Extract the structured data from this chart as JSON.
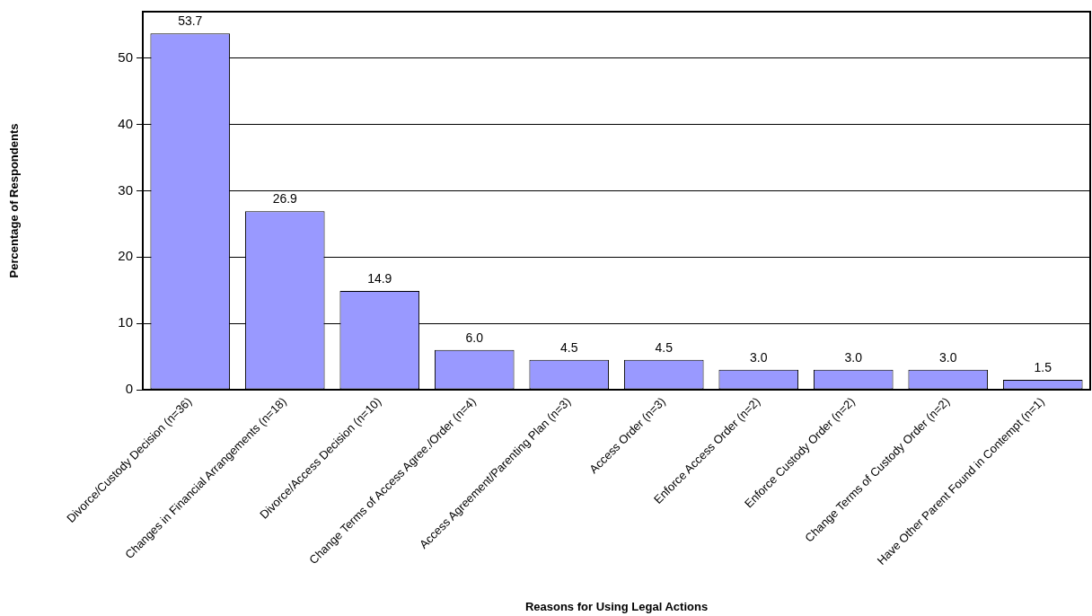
{
  "chart_data": {
    "type": "bar",
    "xlabel": "Reasons for Using Legal Actions",
    "ylabel": "Percentage of Respondents",
    "categories": [
      "Divorce/Custody Decision (n=36)",
      "Changes in Financial Arrangements (n=18)",
      "Divorce/Access Decision (n=10)",
      "Change Terms of Access Agree./Order (n=4)",
      "Access Agreement/Parenting Plan (n=3)",
      "Access Order (n=3)",
      "Enforce Access Order (n=2)",
      "Enforce Custody Order (n=2)",
      "Change Terms of Custody Order (n=2)",
      "Have Other Parent Found in Contempt (n=1)"
    ],
    "values": [
      53.7,
      26.9,
      14.9,
      6.0,
      4.5,
      4.5,
      3.0,
      3.0,
      3.0,
      1.5
    ],
    "value_labels": [
      "53.7",
      "26.9",
      "14.9",
      "6.0",
      "4.5",
      "4.5",
      "3.0",
      "3.0",
      "3.0",
      "1.5"
    ],
    "color": "#9999ff",
    "ylim": [
      0,
      57
    ],
    "yticks": [
      0,
      10,
      20,
      30,
      40,
      50
    ],
    "grid": "y"
  }
}
